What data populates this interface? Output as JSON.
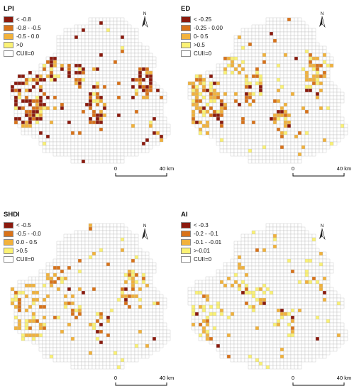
{
  "panels": [
    {
      "title": "LPI",
      "legend": [
        {
          "label": "< -0.8",
          "color": "#8b1a0e"
        },
        {
          "label": "-0.8 - -0.5",
          "color": "#d9731a"
        },
        {
          "label": "-0.5 - 0.0",
          "color": "#f2b23c"
        },
        {
          "label": ">0",
          "color": "#fbf275"
        },
        {
          "label": "CUII=0",
          "color": "#ffffff"
        }
      ],
      "scale": {
        "zero": "0",
        "dist": "40 km"
      }
    },
    {
      "title": "ED",
      "legend": [
        {
          "label": "< -0.25",
          "color": "#8b1a0e"
        },
        {
          "label": "-0.25 - 0.00",
          "color": "#d9731a"
        },
        {
          "label": "0- 0.5",
          "color": "#f2b23c"
        },
        {
          "label": ">0.5",
          "color": "#fbf275"
        },
        {
          "label": "CUII=0",
          "color": "#ffffff"
        }
      ],
      "scale": {
        "zero": "0",
        "dist": "40 km"
      }
    },
    {
      "title": "SHDI",
      "legend": [
        {
          "label": "< -0.5",
          "color": "#8b1a0e"
        },
        {
          "label": "-0.5 - -0.0",
          "color": "#d9731a"
        },
        {
          "label": "0.0 - 0.5",
          "color": "#f2b23c"
        },
        {
          "label": ">0.5",
          "color": "#fbf275"
        },
        {
          "label": "CUII=0",
          "color": "#ffffff"
        }
      ],
      "scale": {
        "zero": "0",
        "dist": "40 km"
      }
    },
    {
      "title": "AI",
      "legend": [
        {
          "label": "< -0.3",
          "color": "#8b1a0e"
        },
        {
          "label": "-0.2 - -0.1",
          "color": "#d9731a"
        },
        {
          "label": "-0.1 - -0.01",
          "color": "#f2b23c"
        },
        {
          "label": ">-0.01",
          "color": "#fbf275"
        },
        {
          "label": "CUII=0",
          "color": "#ffffff"
        }
      ],
      "scale": {
        "zero": "0",
        "dist": "40 km"
      }
    }
  ],
  "north_label": "N",
  "grid_line_color": "#b9b9b9"
}
